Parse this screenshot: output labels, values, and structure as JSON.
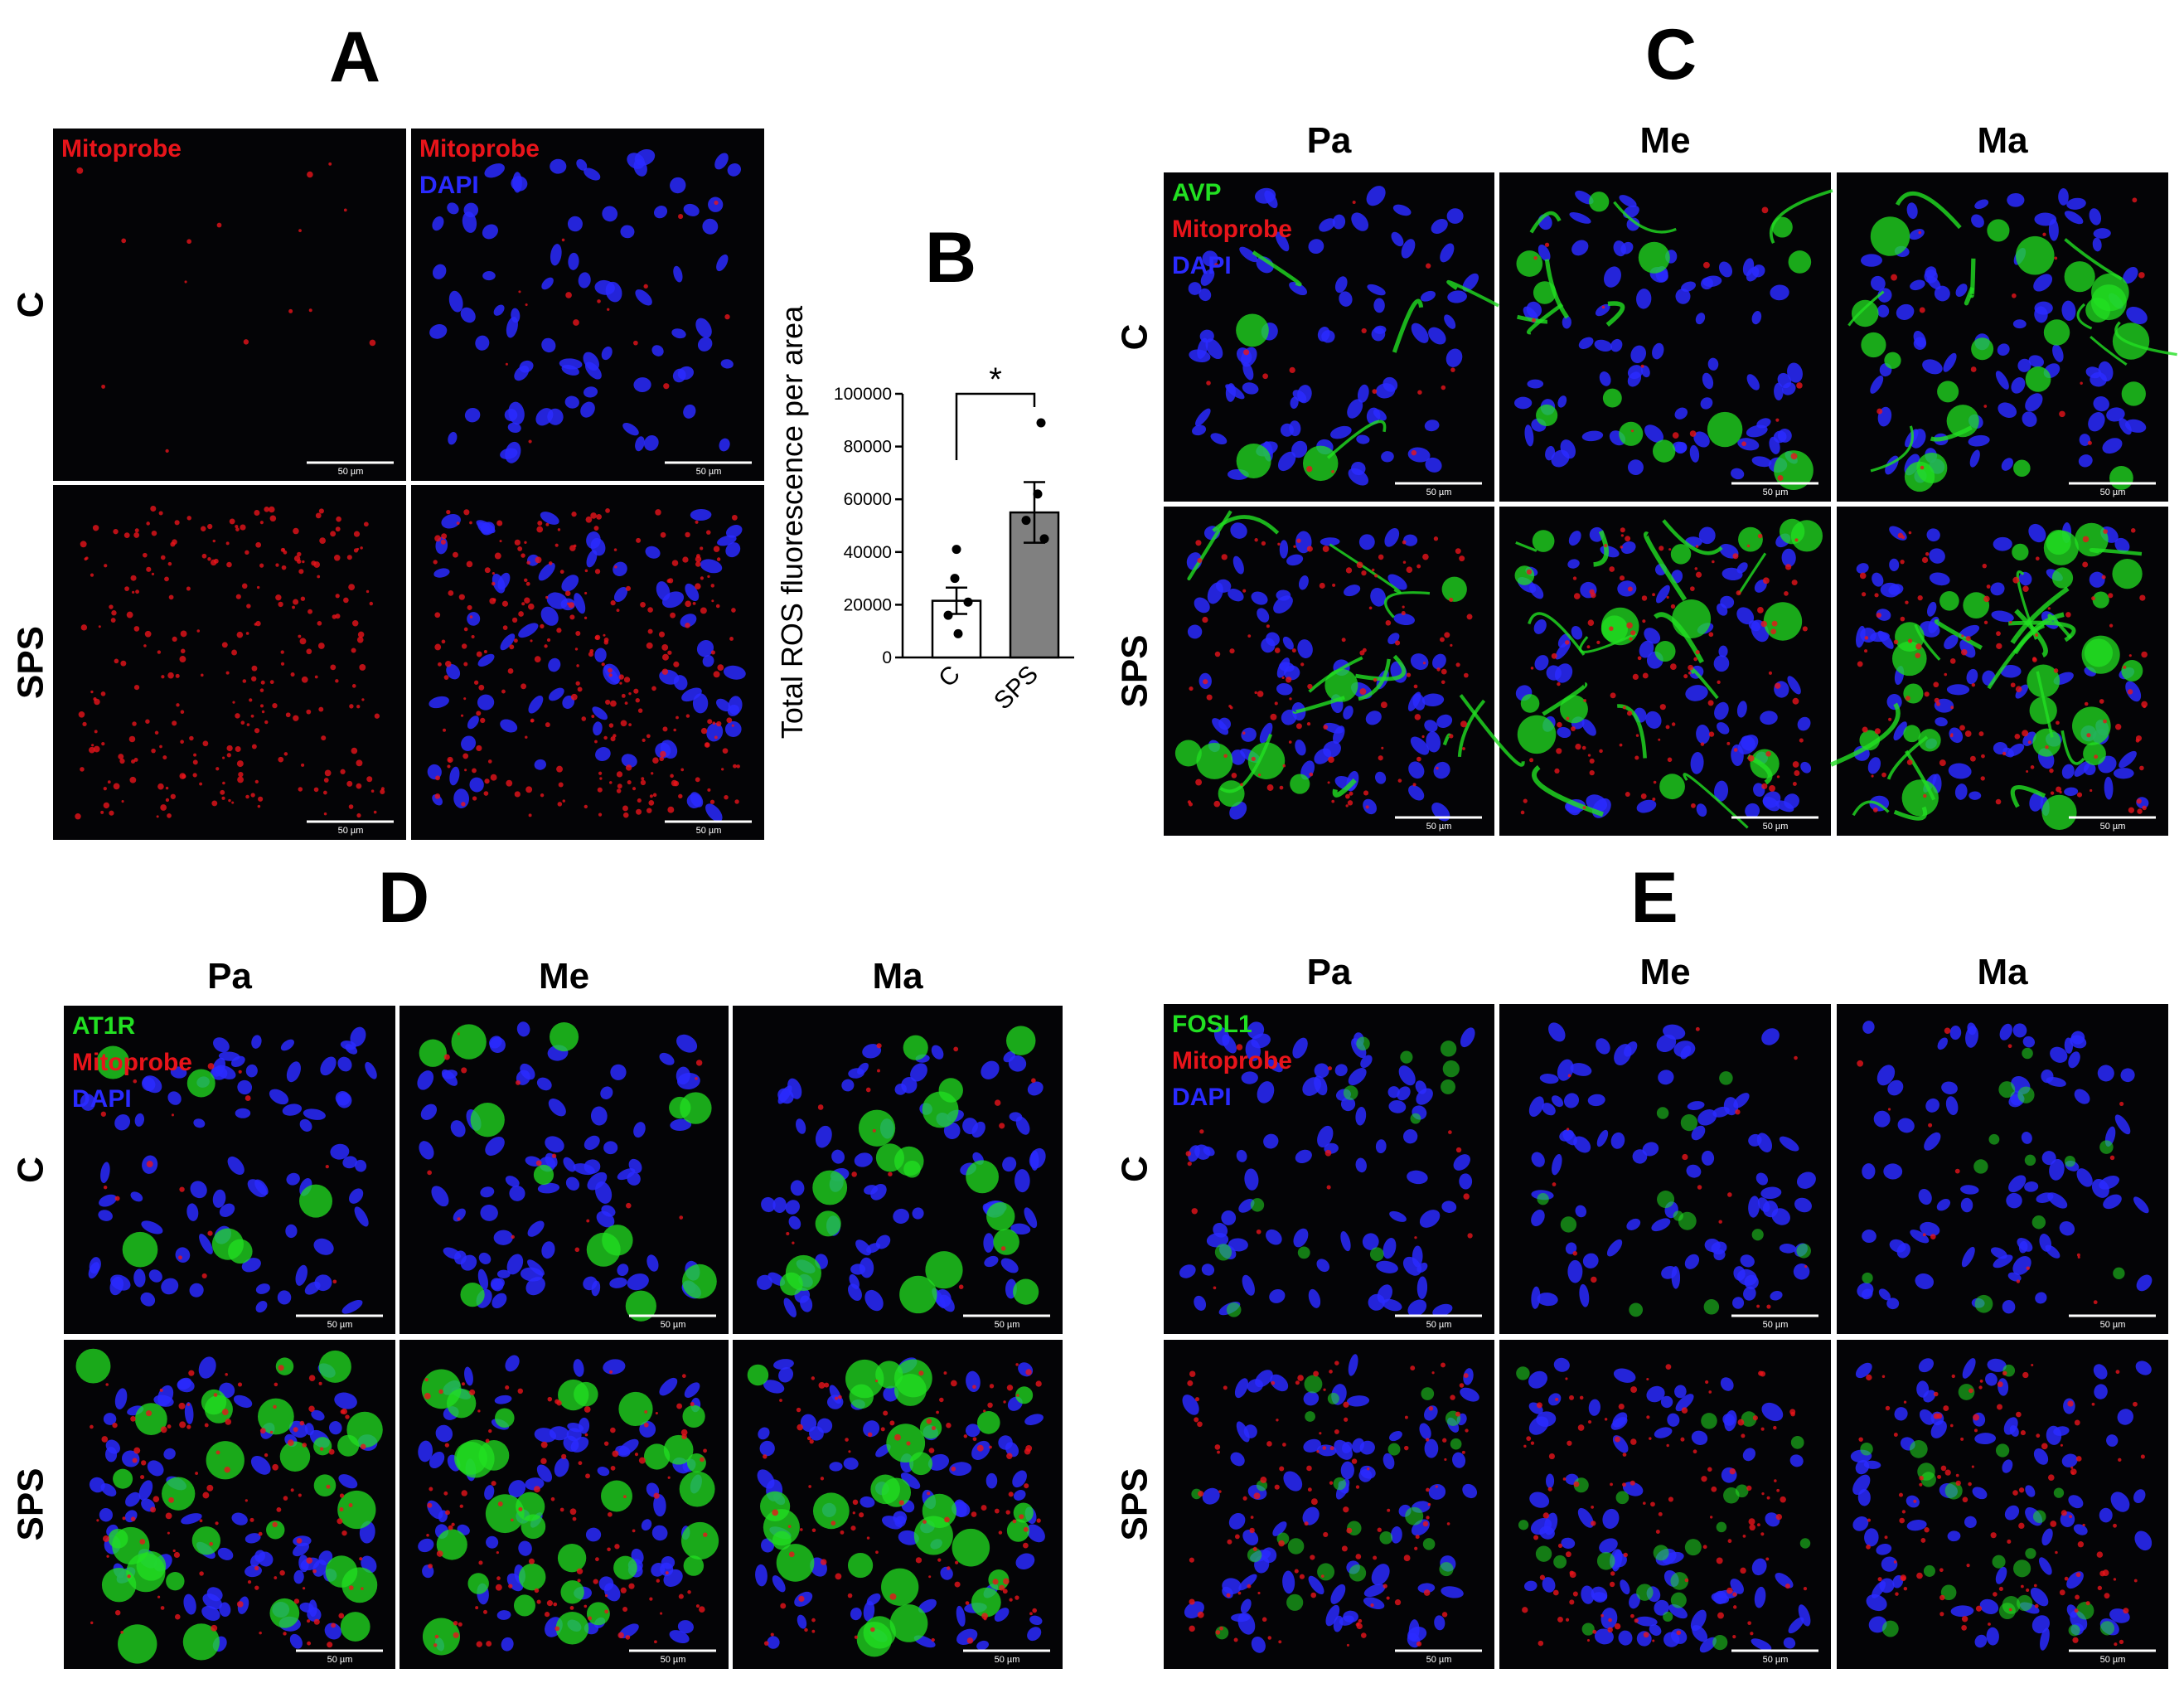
{
  "panels": [
    {
      "label": "A",
      "rows": [
        "C",
        "SPS"
      ],
      "columns": [],
      "legends": [
        [
          {
            "name": "Mitoprobe",
            "color": "#e8141a"
          }
        ],
        [
          {
            "name": "Mitoprobe",
            "color": "#e8141a"
          },
          {
            "name": "DAPI",
            "color": "#2a2aff"
          }
        ]
      ],
      "scale_bar": "50 µm"
    },
    {
      "label": "C",
      "rows": [
        "C",
        "SPS"
      ],
      "columns": [
        "Pa",
        "Me",
        "Ma"
      ],
      "legends": [
        [
          {
            "name": "AVP",
            "color": "#22e022"
          },
          {
            "name": "Mitoprobe",
            "color": "#e8141a"
          },
          {
            "name": "DAPI",
            "color": "#2a2aff"
          }
        ]
      ],
      "scale_bar": "50 µm"
    },
    {
      "label": "D",
      "rows": [
        "C",
        "SPS"
      ],
      "columns": [
        "Pa",
        "Me",
        "Ma"
      ],
      "legends": [
        [
          {
            "name": "AT1R",
            "color": "#22e022"
          },
          {
            "name": "Mitoprobe",
            "color": "#e8141a"
          },
          {
            "name": "DAPI",
            "color": "#2a2aff"
          }
        ]
      ],
      "scale_bar": "50 µm"
    },
    {
      "label": "E",
      "rows": [
        "C",
        "SPS"
      ],
      "columns": [
        "Pa",
        "Me",
        "Ma"
      ],
      "legends": [
        [
          {
            "name": "FOSL1",
            "color": "#22e022"
          },
          {
            "name": "Mitoprobe",
            "color": "#e8141a"
          },
          {
            "name": "DAPI",
            "color": "#2a2aff"
          }
        ]
      ],
      "scale_bar": "50 µm"
    }
  ],
  "chart_data": {
    "type": "bar",
    "title": "B",
    "y_label": "Total ROS fluorescence per area",
    "categories": [
      "C",
      "SPS"
    ],
    "values": [
      21500,
      55000
    ],
    "errors": [
      5000,
      11500
    ],
    "points": [
      [
        41000,
        30000,
        21000,
        16000,
        9000
      ],
      [
        89000,
        62000,
        52000,
        45000
      ]
    ],
    "colors": [
      "#ffffff",
      "#808080"
    ],
    "ylim": [
      0,
      100000
    ],
    "yticks": [
      0,
      20000,
      40000,
      60000,
      80000,
      100000
    ],
    "annotation": "*"
  }
}
